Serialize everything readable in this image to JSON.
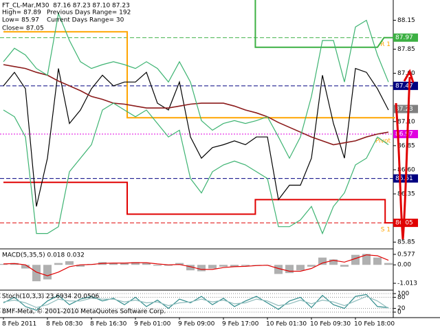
{
  "chart_data": [
    {
      "type": "line",
      "title": "FT_CL-Mar,M30  87.16 87.23 87.10 87.23",
      "annotations": [
        "High= 87.89",
        "Previous Days Range= 192",
        "Low= 85.97",
        "Current Days Range= 30",
        "Close= 87.05"
      ],
      "categories": [
        "8 Feb 2011",
        null,
        null,
        null,
        "8 Feb 08:30",
        null,
        null,
        null,
        "8 Feb 16:30",
        null,
        null,
        null,
        "9 Feb 01:00",
        null,
        null,
        null,
        "9 Feb 09:00",
        null,
        null,
        null,
        "9 Feb 17:00",
        null,
        null,
        null,
        "10 Feb 01:30",
        null,
        null,
        null,
        "10 Feb 09:30",
        null,
        null,
        null,
        "10 Feb 18:00",
        null,
        null,
        null
      ],
      "series": [
        {
          "color": "#000000",
          "values": [
            87.47,
            87.61,
            87.44,
            86.22,
            86.72,
            87.65,
            87.08,
            87.22,
            87.44,
            87.58,
            87.47,
            87.51,
            87.51,
            87.61,
            87.29,
            87.22,
            87.51,
            86.94,
            86.72,
            86.83,
            86.86,
            86.9,
            86.86,
            86.94,
            86.94,
            86.29,
            86.44,
            86.44,
            86.72,
            87.58,
            87.08,
            86.72,
            87.65,
            87.61,
            87.44,
            87.22
          ]
        },
        {
          "color": "#8b1a1a",
          "values": [
            87.69,
            87.67,
            87.65,
            87.61,
            87.58,
            87.52,
            87.47,
            87.42,
            87.36,
            87.33,
            87.29,
            87.28,
            87.26,
            87.24,
            87.24,
            87.24,
            87.26,
            87.28,
            87.29,
            87.29,
            87.29,
            87.26,
            87.22,
            87.19,
            87.15,
            87.09,
            87.04,
            86.99,
            86.94,
            86.9,
            86.86,
            86.88,
            86.9,
            86.94,
            86.97,
            86.99
          ]
        },
        {
          "color": "#3cb371",
          "values": [
            87.72,
            87.86,
            87.79,
            87.65,
            87.58,
            88.22,
            87.94,
            87.72,
            87.65,
            87.69,
            87.72,
            87.69,
            87.65,
            87.72,
            87.65,
            87.51,
            87.72,
            87.51,
            87.11,
            87.01,
            87.08,
            87.11,
            87.08,
            87.11,
            87.15,
            86.94,
            86.72,
            86.94,
            87.36,
            87.94,
            87.94,
            87.51,
            88.08,
            88.15,
            87.79,
            87.51
          ]
        },
        {
          "color": "#3cb371",
          "values": [
            87.22,
            87.15,
            86.94,
            85.94,
            85.94,
            86.01,
            86.58,
            86.72,
            86.86,
            87.22,
            87.29,
            87.22,
            87.15,
            87.22,
            87.08,
            86.94,
            87.01,
            86.51,
            86.36,
            86.58,
            86.65,
            86.69,
            86.65,
            86.58,
            86.51,
            86.01,
            86.01,
            86.08,
            86.22,
            85.94,
            86.22,
            86.36,
            86.65,
            86.72,
            86.94,
            86.86
          ]
        }
      ],
      "steps": [
        {
          "color": "#ffa500",
          "x": [
            0,
            11.25,
            11.25,
            35.6
          ],
          "values": [
            88.03,
            88.03,
            87.14,
            87.14
          ]
        },
        {
          "color": "#e00000",
          "x": [
            0,
            11.25,
            11.25,
            22.9,
            22.9,
            34.7,
            34.7,
            35.6
          ],
          "values": [
            86.47,
            86.47,
            86.14,
            86.14,
            86.29,
            86.29,
            86.05,
            86.05
          ]
        },
        {
          "color": "#3cb043",
          "x": [
            22.9,
            22.9,
            34,
            34.6,
            35.6
          ],
          "values": [
            88.36,
            87.87,
            87.87,
            87.97,
            87.97
          ]
        }
      ],
      "levels": [
        {
          "value": 87.97,
          "color": "#3cb043",
          "style": "dash",
          "name": "R 1"
        },
        {
          "value": 87.47,
          "color": "#000080",
          "style": "dash"
        },
        {
          "value": 87.23,
          "color": "#808080",
          "style": "box"
        },
        {
          "value": 86.97,
          "color": "#e000e0",
          "style": "dot",
          "name": "Pivot"
        },
        {
          "value": 86.51,
          "color": "#000080",
          "style": "dash"
        },
        {
          "value": 86.05,
          "color": "#e00000",
          "style": "dash",
          "name": "S 1"
        }
      ],
      "ylim": [
        85.78,
        88.36
      ],
      "yticks": [
        88.15,
        87.85,
        {
          "value": 87.6,
          "label": "87.60"
        },
        {
          "value": 87.1,
          "label": "87.10"
        },
        86.85,
        {
          "value": 86.6,
          "label": "86.60"
        },
        86.35,
        85.85
      ],
      "grid": false
    },
    {
      "type": "bar",
      "title": "MACD(5,35,5) 0.018 0.032",
      "color": "#b0b0b0",
      "values": [
        0.05,
        0.1,
        -0.2,
        -0.9,
        -0.8,
        0.1,
        0.2,
        -0.1,
        0.05,
        0.15,
        0.1,
        0.12,
        0.15,
        0.1,
        -0.05,
        -0.05,
        0.1,
        -0.3,
        -0.35,
        -0.2,
        -0.1,
        -0.1,
        -0.05,
        0,
        0,
        -0.5,
        -0.45,
        -0.3,
        -0.1,
        0.4,
        0.3,
        -0.1,
        0.55,
        0.6,
        0.4,
        0.1
      ],
      "series": [
        {
          "color": "#e00000",
          "values": [
            0.05,
            0.07,
            0,
            -0.4,
            -0.6,
            -0.4,
            -0.1,
            0,
            0.02,
            0.08,
            0.1,
            0.1,
            0.12,
            0.12,
            0.05,
            0,
            0.02,
            -0.1,
            -0.25,
            -0.25,
            -0.15,
            -0.1,
            -0.08,
            -0.04,
            -0.02,
            -0.2,
            -0.35,
            -0.35,
            -0.2,
            0.1,
            0.25,
            0.15,
            0.35,
            0.55,
            0.5,
            0.25
          ]
        }
      ],
      "ylim": [
        -1.35,
        0.84
      ],
      "yticks": [
        0.577,
        {
          "value": 0,
          "label": "0.00"
        },
        -1.013
      ],
      "grid": false
    },
    {
      "type": "line",
      "title": "Stoch(10,3,3) 23.6934 20.0506",
      "subtitle": "BMF-Meta, © 2001-2010 MetaQuotes Software Corp.",
      "series": [
        {
          "color": "#2e8b8b",
          "values": [
            50,
            80,
            30,
            10,
            60,
            90,
            40,
            70,
            85,
            60,
            75,
            40,
            80,
            30,
            65,
            20,
            70,
            50,
            85,
            40,
            75,
            30,
            60,
            85,
            50,
            15,
            60,
            80,
            25,
            90,
            40,
            20,
            85,
            95,
            30,
            24
          ]
        },
        {
          "color": "#8fbcbc",
          "values": [
            55,
            65,
            50,
            25,
            40,
            70,
            60,
            60,
            75,
            70,
            70,
            55,
            65,
            50,
            55,
            35,
            50,
            55,
            70,
            55,
            65,
            45,
            50,
            70,
            60,
            35,
            45,
            65,
            45,
            65,
            55,
            35,
            60,
            85,
            60,
            20
          ]
        }
      ],
      "ylim": [
        -26,
        115
      ],
      "yticks": [
        100,
        80,
        20,
        0
      ],
      "grid": true
    }
  ]
}
